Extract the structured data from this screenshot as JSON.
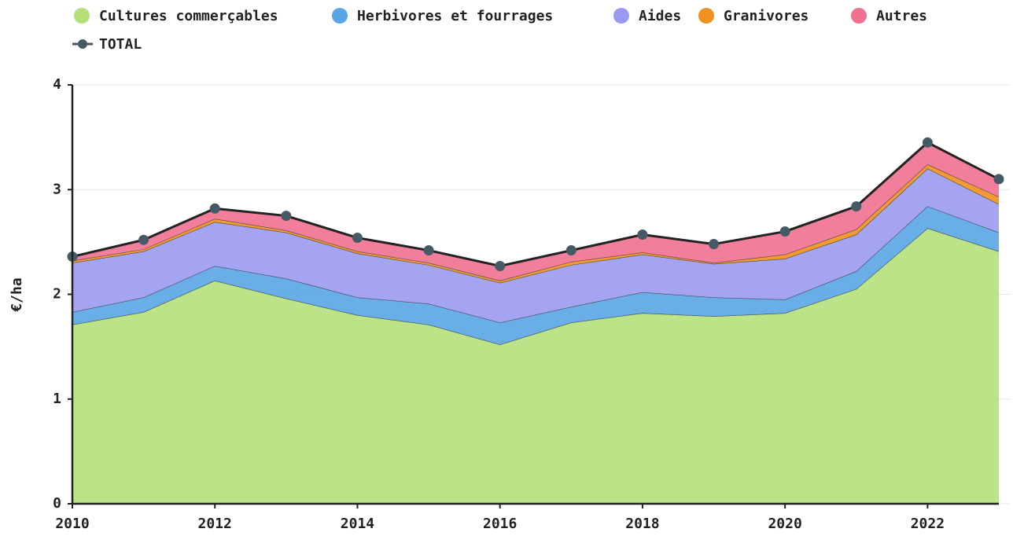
{
  "chart_data": {
    "type": "stacked_area",
    "y_label": "€/ha",
    "x": [
      2010,
      2011,
      2012,
      2013,
      2014,
      2015,
      2016,
      2017,
      2018,
      2019,
      2020,
      2021,
      2022,
      2023
    ],
    "series": [
      {
        "name": "Cultures commerçables",
        "color": "#b5e07a",
        "values": [
          1.71,
          1.83,
          2.13,
          1.96,
          1.8,
          1.71,
          1.52,
          1.73,
          1.82,
          1.79,
          1.82,
          2.05,
          2.63,
          2.41
        ]
      },
      {
        "name": "Herbivores et fourrages",
        "color": "#5aa5e6",
        "values": [
          0.12,
          0.14,
          0.14,
          0.19,
          0.17,
          0.2,
          0.21,
          0.15,
          0.2,
          0.18,
          0.13,
          0.17,
          0.21,
          0.18
        ]
      },
      {
        "name": "Aides",
        "color": "#9a9af0",
        "values": [
          0.47,
          0.44,
          0.42,
          0.44,
          0.42,
          0.37,
          0.38,
          0.4,
          0.36,
          0.32,
          0.39,
          0.35,
          0.36,
          0.27
        ]
      },
      {
        "name": "Granivores",
        "color": "#f0901e",
        "values": [
          0.02,
          0.02,
          0.03,
          0.02,
          0.02,
          0.02,
          0.02,
          0.03,
          0.02,
          0.01,
          0.04,
          0.05,
          0.04,
          0.07
        ]
      },
      {
        "name": "Autres",
        "color": "#f07090",
        "values": [
          0.04,
          0.09,
          0.1,
          0.14,
          0.13,
          0.12,
          0.14,
          0.11,
          0.17,
          0.18,
          0.22,
          0.22,
          0.21,
          0.17
        ]
      },
      {
        "name": "TOTAL",
        "color": "#455a64",
        "line": true,
        "values": [
          2.36,
          2.52,
          2.82,
          2.75,
          2.54,
          2.42,
          2.27,
          2.42,
          2.57,
          2.48,
          2.6,
          2.84,
          3.45,
          3.1
        ]
      }
    ],
    "xlim": [
      2010,
      2023
    ],
    "xticks": [
      2010,
      2012,
      2014,
      2016,
      2018,
      2020,
      2022
    ],
    "ylim": [
      0,
      4
    ],
    "yticks": [
      0,
      1,
      2,
      3,
      4
    ],
    "grid": true
  }
}
